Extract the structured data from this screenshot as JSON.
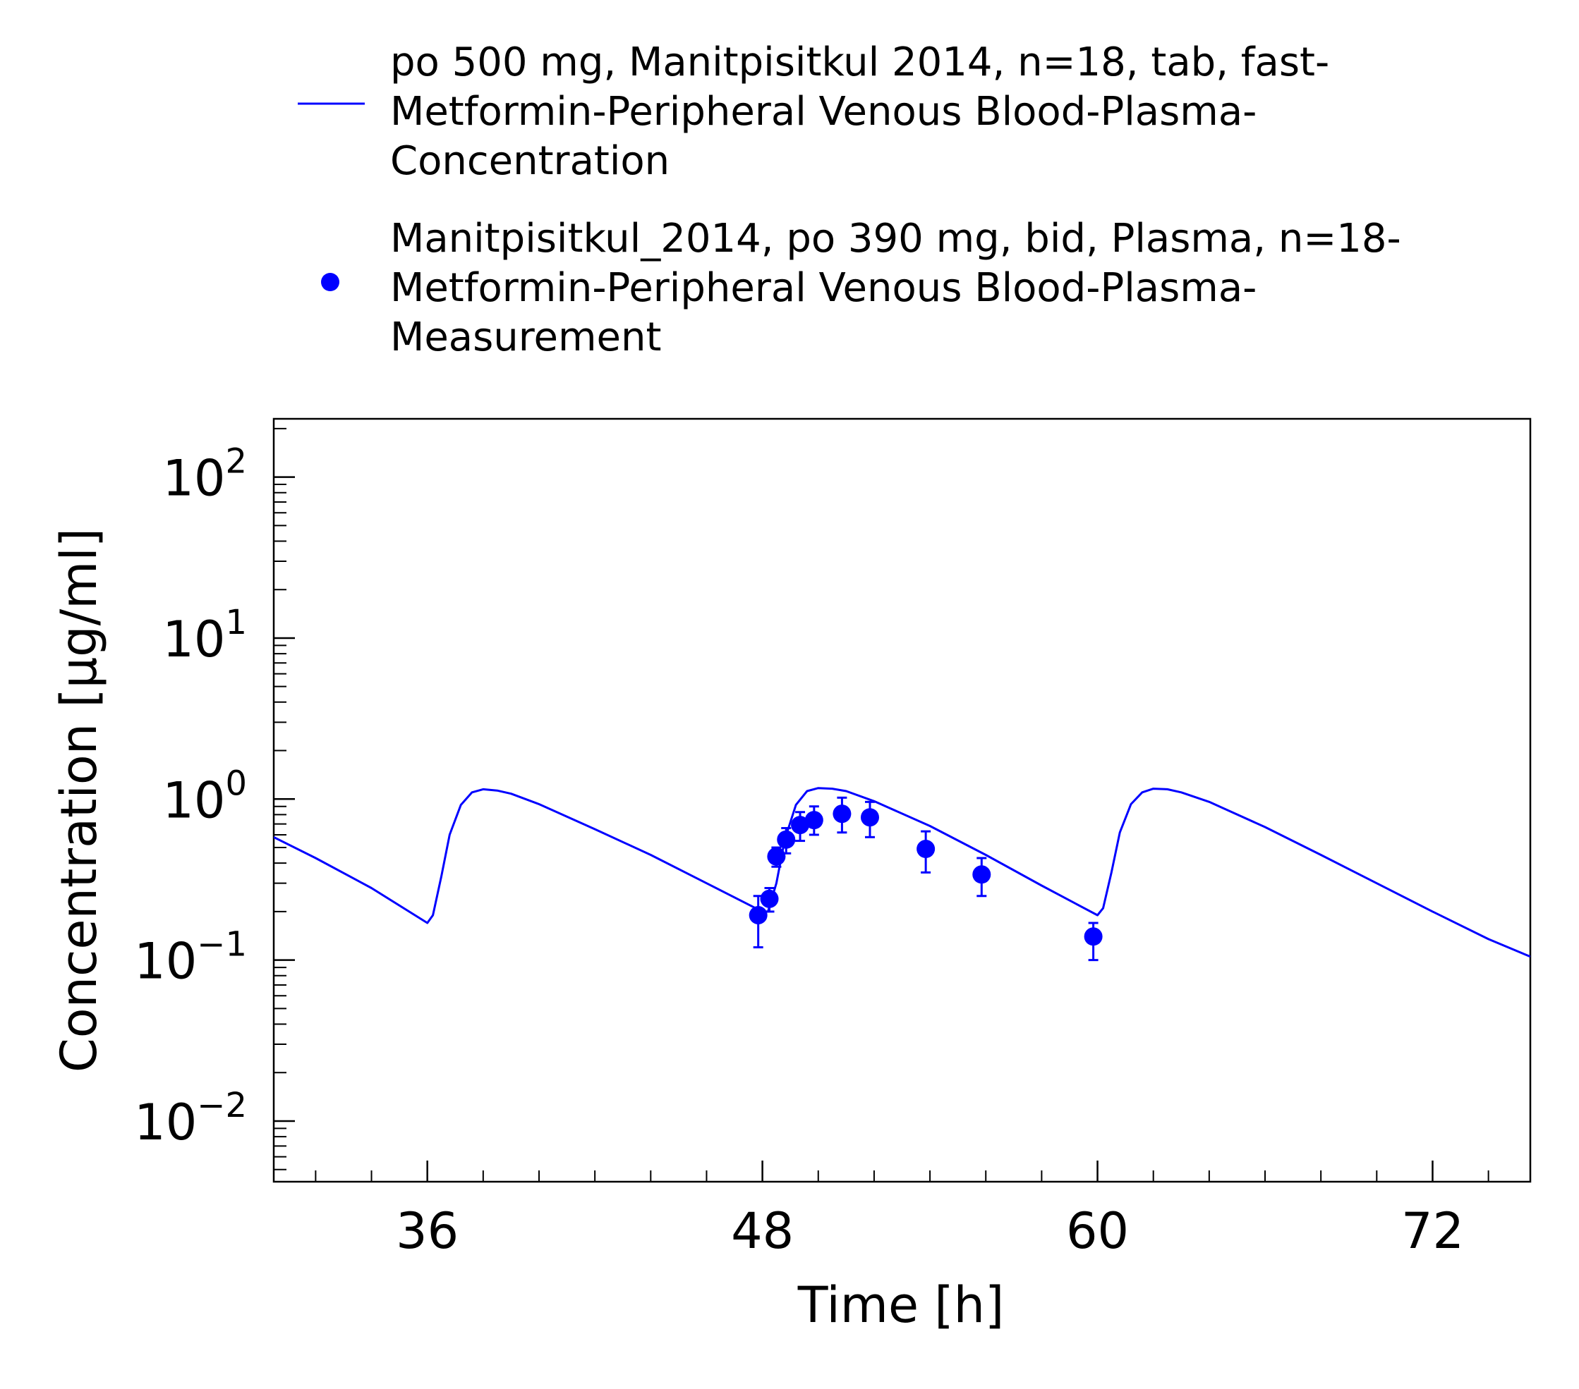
{
  "chart_data": {
    "type": "line",
    "xlabel": "Time [h]",
    "ylabel": "Concentration [µg/ml]",
    "xlim": [
      30.5,
      75.5
    ],
    "ylim": [
      0.0042,
      230
    ],
    "yscale": "log",
    "xticks": [
      36,
      48,
      60,
      72
    ],
    "yticks": [
      {
        "value": 0.01,
        "base": "10",
        "exp": "−2"
      },
      {
        "value": 0.1,
        "base": "10",
        "exp": "−1"
      },
      {
        "value": 1,
        "base": "10",
        "exp": "0"
      },
      {
        "value": 10,
        "base": "10",
        "exp": "1"
      },
      {
        "value": 100,
        "base": "10",
        "exp": "2"
      }
    ],
    "grid": false,
    "legend_position": "top",
    "series": [
      {
        "name": "po 500 mg, Manitpisitkul 2014, n=18, tab, fast-\nMetformin-Peripheral Venous Blood-Plasma-\nConcentration",
        "kind": "line",
        "color": "#0000ff",
        "x": [
          30.5,
          32,
          34,
          36,
          36.2,
          36.5,
          36.8,
          37.2,
          37.6,
          38,
          38.5,
          39,
          40,
          42,
          44,
          46,
          48,
          48.2,
          48.5,
          48.8,
          49.2,
          49.6,
          50,
          50.5,
          51,
          52,
          54,
          56,
          58,
          60,
          60.2,
          60.5,
          60.8,
          61.2,
          61.6,
          62,
          62.5,
          63,
          64,
          66,
          68,
          70,
          72,
          74,
          75.5
        ],
        "y": [
          0.58,
          0.43,
          0.28,
          0.17,
          0.19,
          0.33,
          0.6,
          0.92,
          1.1,
          1.15,
          1.13,
          1.08,
          0.93,
          0.65,
          0.45,
          0.3,
          0.2,
          0.2,
          0.3,
          0.56,
          0.92,
          1.12,
          1.17,
          1.16,
          1.12,
          0.97,
          0.68,
          0.45,
          0.29,
          0.19,
          0.21,
          0.35,
          0.62,
          0.93,
          1.1,
          1.16,
          1.15,
          1.1,
          0.96,
          0.67,
          0.45,
          0.3,
          0.2,
          0.135,
          0.105
        ]
      },
      {
        "name": "Manitpisitkul_2014, po 390 mg, bid, Plasma, n=18-\nMetformin-Peripheral Venous Blood-Plasma-\nMeasurement",
        "kind": "scatter",
        "color": "#0000ff",
        "x": [
          47.85,
          48.25,
          48.5,
          48.85,
          49.35,
          49.85,
          50.85,
          51.85,
          53.85,
          55.85,
          59.85
        ],
        "y": [
          0.19,
          0.24,
          0.44,
          0.56,
          0.69,
          0.74,
          0.81,
          0.77,
          0.49,
          0.34,
          0.14
        ],
        "err_low": [
          0.12,
          0.2,
          0.38,
          0.46,
          0.55,
          0.6,
          0.62,
          0.58,
          0.35,
          0.25,
          0.1
        ],
        "err_high": [
          0.25,
          0.28,
          0.5,
          0.66,
          0.83,
          0.9,
          1.02,
          0.96,
          0.63,
          0.43,
          0.17
        ]
      }
    ]
  }
}
